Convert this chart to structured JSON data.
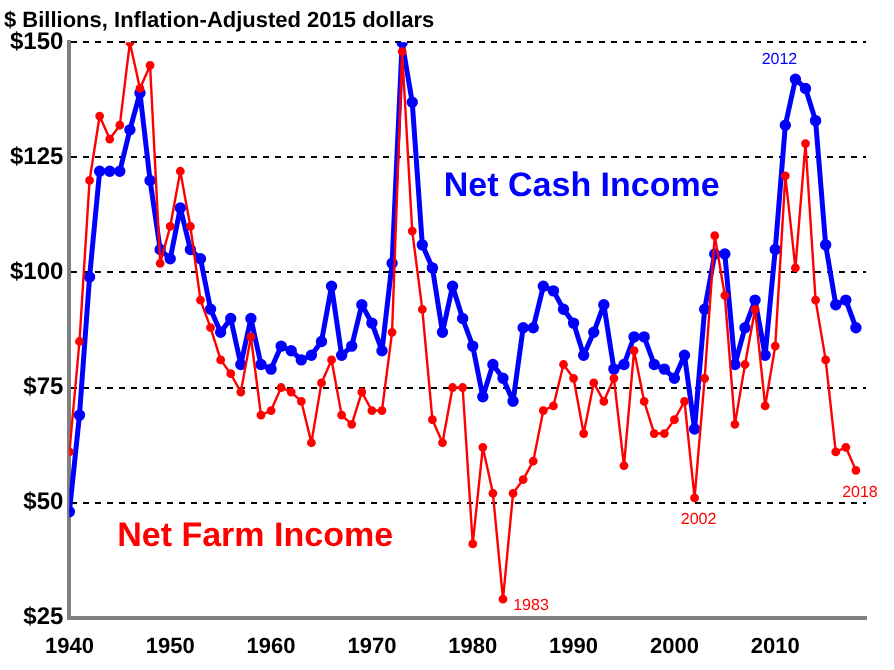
{
  "chart_data": {
    "type": "line",
    "title": "$ Billions, Inflation-Adjusted 2015 dollars",
    "x": [
      1940,
      1941,
      1942,
      1943,
      1944,
      1945,
      1946,
      1947,
      1948,
      1949,
      1950,
      1951,
      1952,
      1953,
      1954,
      1955,
      1956,
      1957,
      1958,
      1959,
      1960,
      1961,
      1962,
      1963,
      1964,
      1965,
      1966,
      1967,
      1968,
      1969,
      1970,
      1971,
      1972,
      1973,
      1974,
      1975,
      1976,
      1977,
      1978,
      1979,
      1980,
      1981,
      1982,
      1983,
      1984,
      1985,
      1986,
      1987,
      1988,
      1989,
      1990,
      1991,
      1992,
      1993,
      1994,
      1995,
      1996,
      1997,
      1998,
      1999,
      2000,
      2001,
      2002,
      2003,
      2004,
      2005,
      2006,
      2007,
      2008,
      2009,
      2010,
      2011,
      2012,
      2013,
      2014,
      2015,
      2016,
      2017,
      2018
    ],
    "series": [
      {
        "name": "Net Cash Income",
        "color": "#0000ff",
        "values": [
          48,
          69,
          99,
          122,
          122,
          122,
          131,
          139,
          120,
          105,
          103,
          114,
          105,
          103,
          92,
          87,
          90,
          80,
          90,
          80,
          79,
          84,
          83,
          81,
          82,
          85,
          97,
          82,
          84,
          93,
          89,
          83,
          102,
          150,
          137,
          106,
          101,
          87,
          97,
          90,
          84,
          73,
          80,
          77,
          72,
          88,
          88,
          97,
          96,
          92,
          89,
          82,
          87,
          93,
          79,
          80,
          86,
          86,
          80,
          79,
          77,
          82,
          66,
          92,
          104,
          104,
          80,
          88,
          94,
          82,
          105,
          132,
          142,
          140,
          133,
          106,
          93,
          94,
          88
        ]
      },
      {
        "name": "Net Farm Income",
        "color": "#ff0000",
        "values": [
          61,
          85,
          120,
          134,
          129,
          132,
          150,
          140,
          145,
          102,
          110,
          122,
          110,
          94,
          88,
          81,
          78,
          74,
          86,
          69,
          70,
          75,
          74,
          72,
          63,
          76,
          81,
          69,
          67,
          74,
          70,
          70,
          87,
          148,
          109,
          92,
          68,
          63,
          75,
          75,
          41,
          62,
          52,
          29,
          52,
          55,
          59,
          70,
          71,
          80,
          77,
          65,
          76,
          72,
          77,
          58,
          83,
          72,
          65,
          65,
          68,
          72,
          51,
          77,
          108,
          95,
          67,
          80,
          92,
          71,
          84,
          121,
          101,
          128,
          94,
          81,
          61,
          62,
          57
        ]
      }
    ],
    "xlim": [
      1940,
      2019
    ],
    "xticks": [
      1940,
      1950,
      1960,
      1970,
      1980,
      1990,
      2000,
      2010
    ],
    "ylim": [
      25,
      150
    ],
    "yticks": [
      {
        "value": 25,
        "label": "$25"
      },
      {
        "value": 50,
        "label": "$50"
      },
      {
        "value": 75,
        "label": "$75"
      },
      {
        "value": 100,
        "label": "$100"
      },
      {
        "value": 125,
        "label": "$125"
      },
      {
        "value": 150,
        "label": "$150"
      }
    ],
    "annotations": [
      {
        "text": "1983",
        "x": 1983,
        "y": 29
      },
      {
        "text": "2002",
        "x": 2002,
        "y": 51
      },
      {
        "text": "2012",
        "x": 2012,
        "y": 142
      },
      {
        "text": "2018",
        "x": 2018,
        "y": 57
      }
    ],
    "grid": "y",
    "legend": false,
    "marker": "circle",
    "line_style": "solid"
  }
}
